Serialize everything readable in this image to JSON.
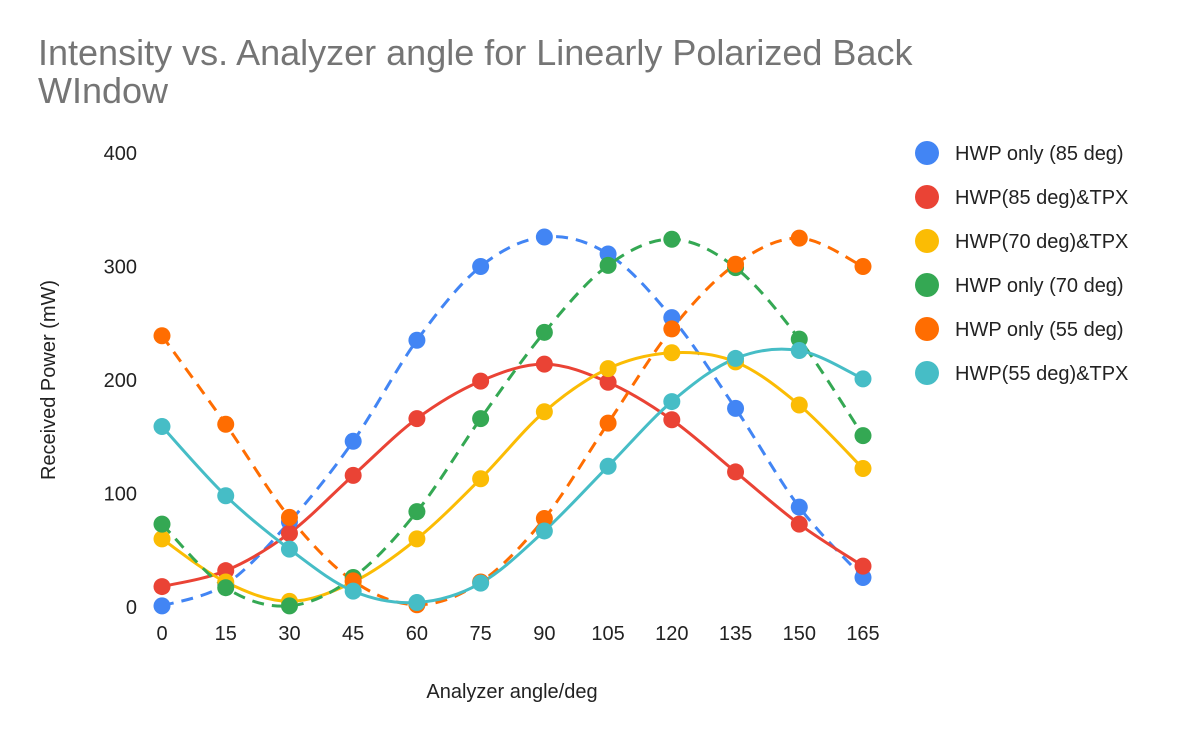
{
  "chart_data": {
    "type": "scatter",
    "title": "Intensity vs. Analyzer angle for Linearly Polarized Back WIndow",
    "xlabel": "Analyzer angle/deg",
    "ylabel": "Received Power (mW)",
    "x_ticks": [
      "0",
      "15",
      "30",
      "45",
      "60",
      "75",
      "90",
      "105",
      "120",
      "135",
      "150",
      "165"
    ],
    "y_ticks": [
      "0",
      "100",
      "200",
      "300",
      "400"
    ],
    "xlim": [
      0,
      165
    ],
    "ylim": [
      0,
      400
    ],
    "grid": false,
    "legend_position": "right",
    "x": [
      0,
      15,
      30,
      45,
      60,
      75,
      90,
      105,
      120,
      135,
      150,
      165
    ],
    "series": [
      {
        "name": "HWP only (85 deg)",
        "color": "#4285F4",
        "line": "dashed",
        "values": [
          1,
          20,
          75,
          146,
          235,
          300,
          326,
          311,
          255,
          175,
          88,
          26
        ]
      },
      {
        "name": "HWP(85 deg)&TPX",
        "color": "#EA4335",
        "line": "solid",
        "values": [
          18,
          32,
          65,
          116,
          166,
          199,
          214,
          198,
          165,
          119,
          73,
          36
        ]
      },
      {
        "name": "HWP(70 deg)&TPX",
        "color": "#FBBC04",
        "line": "solid",
        "values": [
          60,
          22,
          5,
          22,
          60,
          113,
          172,
          210,
          224,
          216,
          178,
          122
        ]
      },
      {
        "name": "HWP only (70 deg)",
        "color": "#34A853",
        "line": "dashed",
        "values": [
          73,
          17,
          1,
          26,
          84,
          166,
          242,
          301,
          324,
          299,
          236,
          151
        ]
      },
      {
        "name": "HWP only (55 deg)",
        "color": "#FF6D01",
        "line": "dashed",
        "values": [
          239,
          161,
          79,
          23,
          2,
          22,
          78,
          162,
          245,
          302,
          325,
          300
        ]
      },
      {
        "name": "HWP(55 deg)&TPX",
        "color": "#46BDC6",
        "line": "solid",
        "values": [
          159,
          98,
          51,
          14,
          4,
          21,
          67,
          124,
          181,
          219,
          226,
          201
        ]
      }
    ]
  }
}
